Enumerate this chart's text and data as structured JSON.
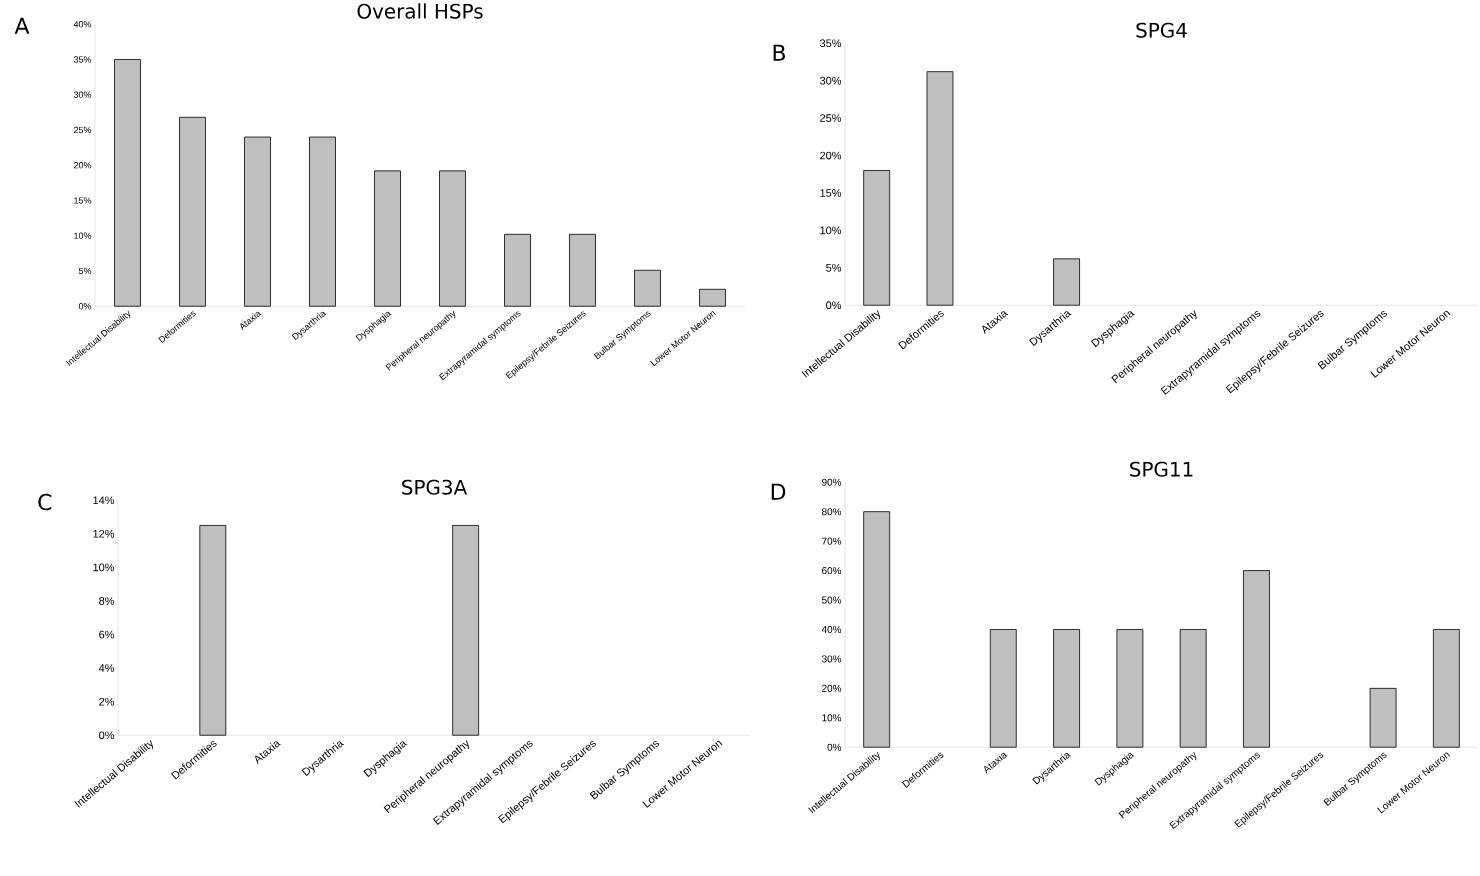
{
  "chart_data": [
    {
      "type": "bar",
      "title": "Overall HSPs",
      "annotations": [
        "A"
      ],
      "categories": [
        "Intellectual Disability",
        "Deformities",
        "Ataxia",
        "Dysarthria",
        "Dysphagia",
        "Peripheral neuropathy",
        "Extrapyramidal symptoms",
        "Epilepsy/Febrile Seizures",
        "Bulbar Symptoms",
        "Lower Motor Neuron"
      ],
      "values": [
        35,
        26.8,
        24,
        24,
        19.2,
        19.2,
        10.2,
        10.2,
        5.1,
        2.4
      ],
      "color": "#bfbfbf",
      "ylim": [
        0,
        40
      ],
      "yticks": [
        {
          "value": 0,
          "label": "0%"
        },
        {
          "value": 5,
          "label": "5%"
        },
        {
          "value": 10,
          "label": "10%"
        },
        {
          "value": 15,
          "label": "15%"
        },
        {
          "value": 20,
          "label": "20%"
        },
        {
          "value": 25,
          "label": "25%"
        },
        {
          "value": 30,
          "label": "30%"
        },
        {
          "value": 35,
          "label": "35%"
        },
        {
          "value": 40,
          "label": "40%"
        }
      ]
    },
    {
      "type": "bar",
      "title": "SPG4",
      "annotations": [
        "B"
      ],
      "categories": [
        "Intellectual Disability",
        "Deformities",
        "Ataxia",
        "Dysarthria",
        "Dysphagia",
        "Peripheral neuropathy",
        "Extrapyramidal symptoms",
        "Epilepsy/Febrile Seizures",
        "Bulbar Symptoms",
        "Lower Motor Neuron"
      ],
      "values": [
        18,
        31.2,
        null,
        6.2,
        null,
        null,
        null,
        null,
        null,
        null
      ],
      "color": "#bfbfbf",
      "ylim": [
        0,
        35
      ],
      "yticks": [
        {
          "value": 0,
          "label": "0%"
        },
        {
          "value": 5,
          "label": "5%"
        },
        {
          "value": 10,
          "label": "10%"
        },
        {
          "value": 15,
          "label": "15%"
        },
        {
          "value": 20,
          "label": "20%"
        },
        {
          "value": 25,
          "label": "25%"
        },
        {
          "value": 30,
          "label": "30%"
        },
        {
          "value": 35,
          "label": "35%"
        }
      ]
    },
    {
      "type": "bar",
      "title": "SPG3A",
      "annotations": [
        "C"
      ],
      "categories": [
        "Intellectual Disability",
        "Deformities",
        "Ataxia",
        "Dysarthria",
        "Dysphagia",
        "Peripheral neuropathy",
        "Extrapyramidal symptoms",
        "Epilepsy/Febrile Seizures",
        "Bulbar Symptoms",
        "Lower Motor Neuron"
      ],
      "values": [
        null,
        12.5,
        null,
        null,
        null,
        12.5,
        null,
        null,
        null,
        null
      ],
      "color": "#bfbfbf",
      "ylim": [
        0,
        14
      ],
      "yticks": [
        {
          "value": 0,
          "label": "0%"
        },
        {
          "value": 2,
          "label": "2%"
        },
        {
          "value": 4,
          "label": "4%"
        },
        {
          "value": 6,
          "label": "6%"
        },
        {
          "value": 8,
          "label": "8%"
        },
        {
          "value": 10,
          "label": "10%"
        },
        {
          "value": 12,
          "label": "12%"
        },
        {
          "value": 14,
          "label": "14%"
        }
      ]
    },
    {
      "type": "bar",
      "title": "SPG11",
      "annotations": [
        "D"
      ],
      "categories": [
        "Intellectual Disability",
        "Deformities",
        "Ataxia",
        "Dysarthria",
        "Dysphagia",
        "Peripheral neuropathy",
        "Extrapyramidal symptoms",
        "Epilepsy/Febrile Seizures",
        "Bulbar Symptoms",
        "Lower Motor Neuron"
      ],
      "values": [
        80,
        null,
        40,
        40,
        40,
        40,
        60,
        null,
        20,
        40
      ],
      "color": "#bfbfbf",
      "ylim": [
        0,
        90
      ],
      "yticks": [
        {
          "value": 0,
          "label": "0%"
        },
        {
          "value": 10,
          "label": "10%"
        },
        {
          "value": 20,
          "label": "20%"
        },
        {
          "value": 30,
          "label": "30%"
        },
        {
          "value": 40,
          "label": "40%"
        },
        {
          "value": 50,
          "label": "50%"
        },
        {
          "value": 60,
          "label": "60%"
        },
        {
          "value": 70,
          "label": "70%"
        },
        {
          "value": 80,
          "label": "80%"
        },
        {
          "value": 90,
          "label": "90%"
        }
      ]
    }
  ]
}
